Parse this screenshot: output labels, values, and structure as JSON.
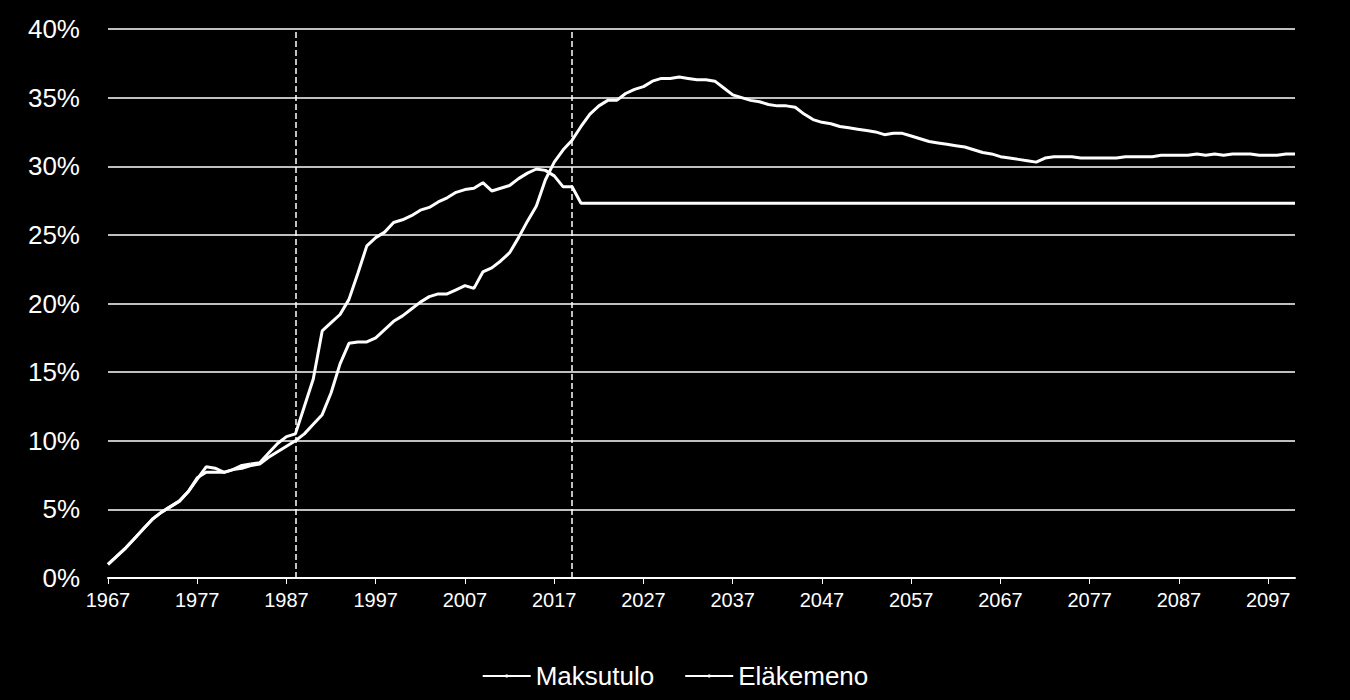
{
  "chart_data": {
    "type": "line",
    "x": [
      1967,
      1968,
      1969,
      1970,
      1971,
      1972,
      1973,
      1974,
      1975,
      1976,
      1977,
      1978,
      1979,
      1980,
      1981,
      1982,
      1983,
      1984,
      1985,
      1986,
      1987,
      1988,
      1989,
      1990,
      1991,
      1992,
      1993,
      1994,
      1995,
      1996,
      1997,
      1998,
      1999,
      2000,
      2001,
      2002,
      2003,
      2004,
      2005,
      2006,
      2007,
      2008,
      2009,
      2010,
      2011,
      2012,
      2013,
      2014,
      2015,
      2016,
      2017,
      2018,
      2019,
      2020,
      2021,
      2022,
      2023,
      2024,
      2025,
      2026,
      2027,
      2028,
      2029,
      2030,
      2031,
      2032,
      2033,
      2034,
      2035,
      2036,
      2037,
      2038,
      2039,
      2040,
      2041,
      2042,
      2043,
      2044,
      2045,
      2046,
      2047,
      2048,
      2049,
      2050,
      2051,
      2052,
      2053,
      2054,
      2055,
      2056,
      2057,
      2058,
      2059,
      2060,
      2061,
      2062,
      2063,
      2064,
      2065,
      2066,
      2067,
      2068,
      2069,
      2070,
      2071,
      2072,
      2073,
      2074,
      2075,
      2076,
      2077,
      2078,
      2079,
      2080,
      2081,
      2082,
      2083,
      2084,
      2085,
      2086,
      2087,
      2088,
      2089,
      2090,
      2091,
      2092,
      2093,
      2094,
      2095,
      2096,
      2097,
      2098,
      2099,
      2100
    ],
    "series": [
      {
        "name": "Maksutulo",
        "color": "#ffffff",
        "values": [
          1.0,
          1.6,
          2.2,
          2.9,
          3.6,
          4.3,
          4.8,
          5.2,
          5.6,
          6.3,
          7.2,
          8.1,
          8.0,
          7.7,
          7.9,
          8.2,
          8.3,
          8.4,
          9.1,
          9.8,
          10.3,
          10.5,
          12.5,
          14.5,
          18.0,
          18.6,
          19.2,
          20.3,
          22.2,
          24.2,
          24.8,
          25.2,
          25.9,
          26.1,
          26.4,
          26.8,
          27.0,
          27.4,
          27.7,
          28.1,
          28.3,
          28.4,
          28.8,
          28.2,
          28.4,
          28.6,
          29.1,
          29.5,
          29.8,
          29.7,
          29.3,
          28.5,
          28.5,
          27.3,
          27.3,
          27.3,
          27.3,
          27.3,
          27.3,
          27.3,
          27.3,
          27.3,
          27.3,
          27.3,
          27.3,
          27.3,
          27.3,
          27.3,
          27.3,
          27.3,
          27.3,
          27.3,
          27.3,
          27.3,
          27.3,
          27.3,
          27.3,
          27.3,
          27.3,
          27.3,
          27.3,
          27.3,
          27.3,
          27.3,
          27.3,
          27.3,
          27.3,
          27.3,
          27.3,
          27.3,
          27.3,
          27.3,
          27.3,
          27.3,
          27.3,
          27.3,
          27.3,
          27.3,
          27.3,
          27.3,
          27.3,
          27.3,
          27.3,
          27.3,
          27.3,
          27.3,
          27.3,
          27.3,
          27.3,
          27.3,
          27.3,
          27.3,
          27.3,
          27.3,
          27.3,
          27.3,
          27.3,
          27.3,
          27.3,
          27.3,
          27.3,
          27.3,
          27.3,
          27.3,
          27.3,
          27.3,
          27.3,
          27.3,
          27.3,
          27.3,
          27.3,
          27.3,
          27.3,
          27.3
        ]
      },
      {
        "name": "Eläkemeno",
        "color": "#ffffff",
        "values": [
          1.0,
          1.6,
          2.2,
          2.9,
          3.6,
          4.3,
          4.8,
          5.2,
          5.6,
          6.3,
          7.3,
          7.7,
          7.7,
          7.7,
          7.9,
          8.0,
          8.2,
          8.3,
          8.8,
          9.2,
          9.6,
          10.0,
          10.5,
          11.2,
          11.9,
          13.5,
          15.6,
          17.1,
          17.2,
          17.2,
          17.5,
          18.1,
          18.7,
          19.1,
          19.6,
          20.1,
          20.5,
          20.7,
          20.7,
          21.0,
          21.3,
          21.1,
          22.3,
          22.6,
          23.1,
          23.7,
          24.8,
          26.0,
          27.1,
          29.0,
          30.3,
          31.2,
          31.9,
          32.9,
          33.8,
          34.4,
          34.8,
          34.8,
          35.3,
          35.6,
          35.8,
          36.2,
          36.4,
          36.4,
          36.5,
          36.4,
          36.3,
          36.3,
          36.2,
          35.7,
          35.2,
          35.0,
          34.8,
          34.7,
          34.5,
          34.4,
          34.4,
          34.3,
          33.8,
          33.4,
          33.2,
          33.1,
          32.9,
          32.8,
          32.7,
          32.6,
          32.5,
          32.3,
          32.4,
          32.4,
          32.2,
          32.0,
          31.8,
          31.7,
          31.6,
          31.5,
          31.4,
          31.2,
          31.0,
          30.9,
          30.7,
          30.6,
          30.5,
          30.4,
          30.3,
          30.6,
          30.7,
          30.7,
          30.7,
          30.6,
          30.6,
          30.6,
          30.6,
          30.6,
          30.7,
          30.7,
          30.7,
          30.7,
          30.8,
          30.8,
          30.8,
          30.8,
          30.9,
          30.8,
          30.9,
          30.8,
          30.9,
          30.9,
          30.9,
          30.8,
          30.8,
          30.8,
          30.9,
          30.9
        ]
      }
    ],
    "vlines": [
      1988,
      2019
    ],
    "xlim": [
      1967,
      2100
    ],
    "xticks": [
      1967,
      1977,
      1987,
      1997,
      2007,
      2017,
      2027,
      2037,
      2047,
      2057,
      2067,
      2077,
      2087,
      2097
    ],
    "ylim": [
      0,
      40
    ],
    "yticks": [
      {
        "value": 0,
        "label": "0%"
      },
      {
        "value": 5,
        "label": "5%"
      },
      {
        "value": 10,
        "label": "10%"
      },
      {
        "value": 15,
        "label": "15%"
      },
      {
        "value": 20,
        "label": "20%"
      },
      {
        "value": 25,
        "label": "25%"
      },
      {
        "value": 30,
        "label": "30%"
      },
      {
        "value": 35,
        "label": "35%"
      },
      {
        "value": 40,
        "label": "40%"
      }
    ],
    "grid": true,
    "legend": "bottom"
  }
}
